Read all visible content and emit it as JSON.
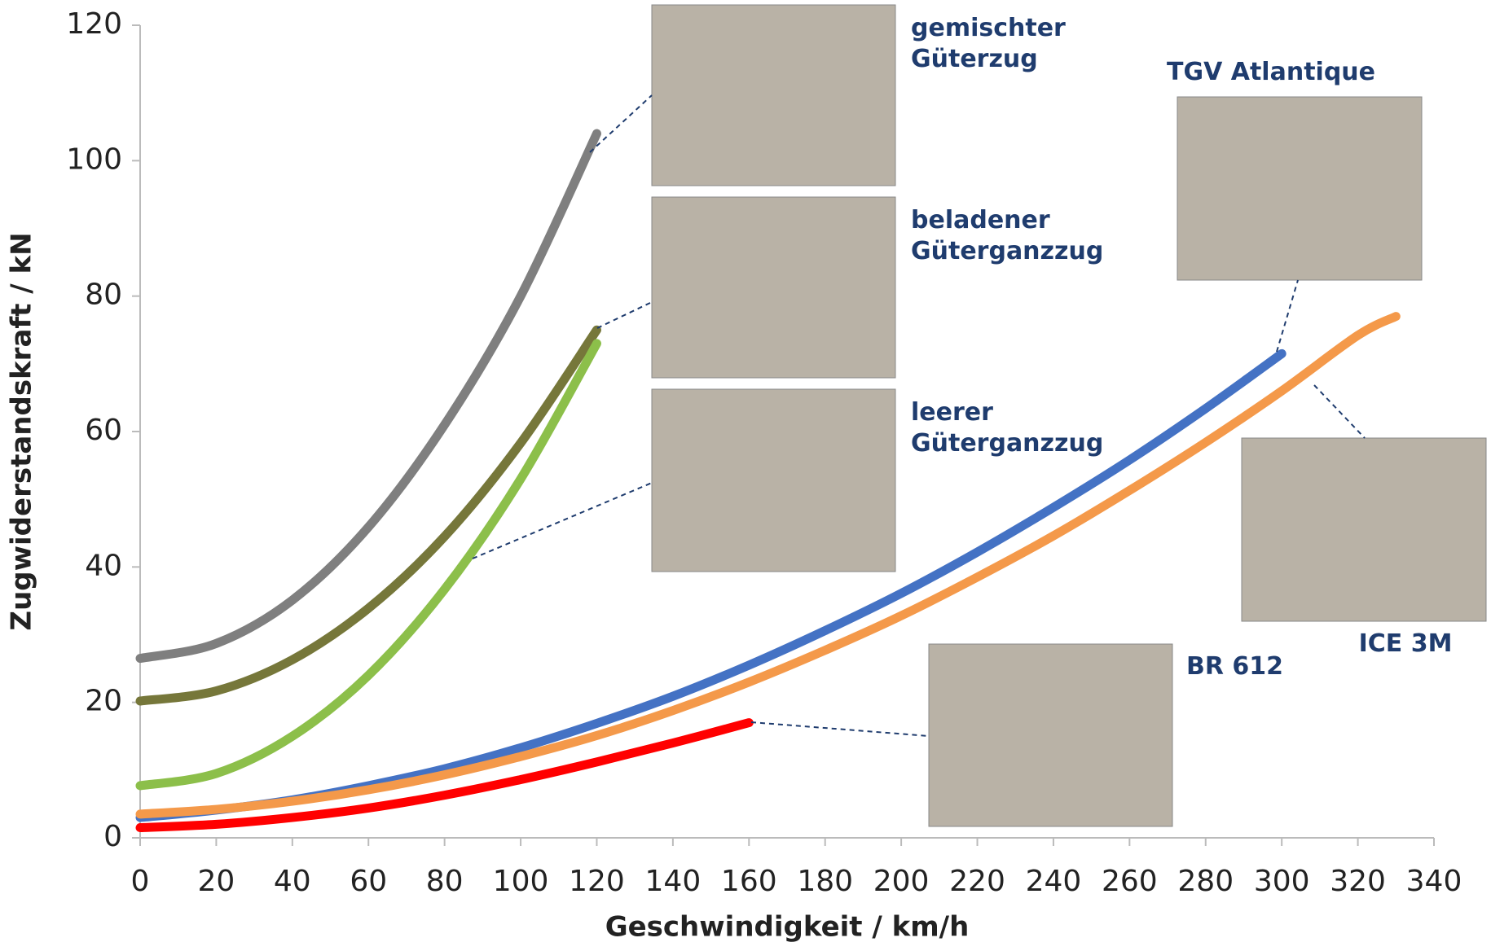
{
  "chart_data": {
    "type": "line",
    "x_label": "Geschwindigkeit  / km/h",
    "y_label": "Zugwiderstandskraft  / kN",
    "xlim": [
      0,
      340
    ],
    "xticks": [
      0,
      20,
      40,
      60,
      80,
      100,
      120,
      140,
      160,
      180,
      200,
      220,
      240,
      260,
      280,
      300,
      320,
      340
    ],
    "ylim": [
      0,
      120
    ],
    "yticks": [
      0,
      20,
      40,
      60,
      80,
      100,
      120
    ],
    "series": [
      {
        "name": "gemischter Güterzug",
        "color": "#7f7f7f",
        "x": [
          0,
          20,
          40,
          60,
          80,
          100,
          120
        ],
        "values": [
          26.5,
          28.7,
          35.1,
          45.9,
          61,
          80,
          104
        ]
      },
      {
        "name": "beladener Güterganzzug",
        "color": "#76773a",
        "x": [
          0,
          20,
          40,
          60,
          80,
          100,
          120
        ],
        "values": [
          20.2,
          21.7,
          26.3,
          33.9,
          44.5,
          58.3,
          75
        ]
      },
      {
        "name": "leerer Güterganzzug",
        "color": "#8cbf4a",
        "x": [
          0,
          20,
          40,
          60,
          80,
          100,
          120
        ],
        "values": [
          7.7,
          9.5,
          15,
          24,
          36.7,
          53,
          73
        ]
      },
      {
        "name": "TGV Atlantique",
        "color": "#4472c4",
        "x": [
          0,
          20,
          40,
          60,
          80,
          100,
          120,
          140,
          160,
          180,
          200,
          220,
          240,
          260,
          280,
          300
        ],
        "values": [
          3,
          4.1,
          5.6,
          7.7,
          10.2,
          13.3,
          16.9,
          20.9,
          25.5,
          30.6,
          36.1,
          42.2,
          48.8,
          55.8,
          63.4,
          71.5
        ]
      },
      {
        "name": "ICE 3M",
        "color": "#f4994a",
        "x": [
          0,
          20,
          40,
          60,
          80,
          100,
          120,
          140,
          160,
          180,
          200,
          220,
          240,
          260,
          280,
          300,
          320,
          330
        ],
        "values": [
          3.5,
          4.2,
          5.4,
          7.1,
          9.3,
          12,
          15.1,
          18.8,
          23,
          27.7,
          32.8,
          38.5,
          44.6,
          51.3,
          58.4,
          66,
          74.2,
          77
        ]
      },
      {
        "name": "BR 612",
        "color": "#ff0000",
        "x": [
          0,
          20,
          40,
          60,
          80,
          100,
          120,
          140,
          160
        ],
        "values": [
          1.5,
          2,
          3,
          4.4,
          6.3,
          8.6,
          11.2,
          14,
          17
        ]
      }
    ]
  }
}
